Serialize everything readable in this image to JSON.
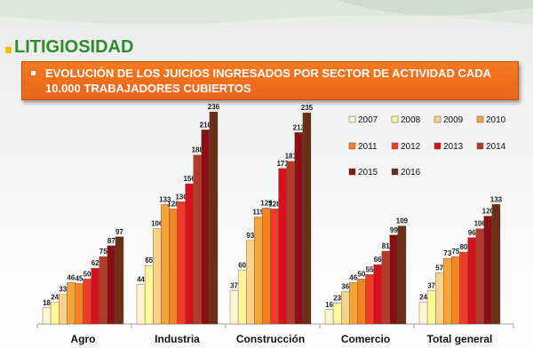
{
  "header": {
    "title": "LITIGIOSIDAD",
    "subtitle": "EVOLUCIÓN DE LOS JUICIOS INGRESADOS POR SECTOR DE ACTIVIDAD CADA 10.000 TRABAJADORES CUBIERTOS"
  },
  "chart_data": {
    "type": "bar",
    "categories": [
      "Agro",
      "Industria",
      "Construcción",
      "Comercio",
      "Total general"
    ],
    "series": [
      {
        "name": "2007",
        "color": "#fff6d0",
        "values": [
          18,
          44,
          37,
          16,
          24
        ]
      },
      {
        "name": "2008",
        "color": "#fff89a",
        "values": [
          24,
          65,
          60,
          23,
          37
        ]
      },
      {
        "name": "2009",
        "color": "#fcd286",
        "values": [
          33,
          106,
          93,
          36,
          57
        ]
      },
      {
        "name": "2010",
        "color": "#f5a43a",
        "values": [
          46,
          133,
          119,
          46,
          73
        ]
      },
      {
        "name": "2011",
        "color": "#f5841f",
        "values": [
          45,
          128,
          129,
          50,
          75
        ]
      },
      {
        "name": "2012",
        "color": "#f03c26",
        "values": [
          50,
          136,
          128,
          55,
          80
        ]
      },
      {
        "name": "2013",
        "color": "#d8101a",
        "values": [
          62,
          156,
          173,
          66,
          96
        ]
      },
      {
        "name": "2014",
        "color": "#b33a2a",
        "values": [
          75,
          188,
          181,
          81,
          106
        ]
      },
      {
        "name": "2015",
        "color": "#8a0f12",
        "values": [
          87,
          216,
          213,
          99,
          120
        ]
      },
      {
        "name": "2016",
        "color": "#6b2f17",
        "values": [
          97,
          236,
          235,
          109,
          133
        ]
      }
    ],
    "ylim": [
      0,
      240
    ],
    "legend_position": "top-right",
    "grid": false
  }
}
